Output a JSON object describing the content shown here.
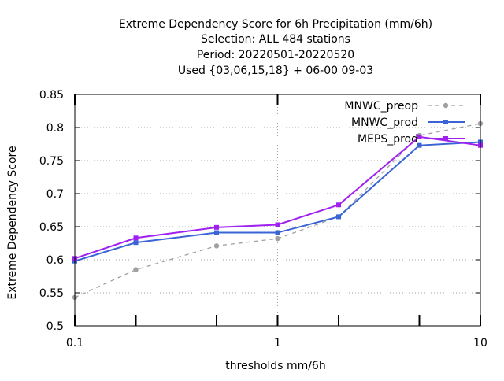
{
  "chart_data": {
    "type": "line",
    "title_lines": [
      "Extreme Dependency Score  for 6h Precipitation (mm/6h)",
      "Selection: ALL     484 stations",
      "Period: 20220501-20220520",
      "Used {03,06,15,18} + 06-00 09-03"
    ],
    "xlabel": "thresholds mm/6h",
    "ylabel": "Extreme Dependency Score",
    "xscale": "log",
    "xlim": [
      0.1,
      10
    ],
    "ylim": [
      0.5,
      0.85
    ],
    "x_ticks": [
      0.1,
      1,
      10
    ],
    "x_tick_labels": [
      "0.1",
      "1",
      "10"
    ],
    "y_ticks": [
      0.5,
      0.55,
      0.6,
      0.65,
      0.7,
      0.75,
      0.8,
      0.85
    ],
    "y_tick_labels": [
      "0.5",
      "0.55",
      "0.6",
      "0.65",
      "0.7",
      "0.75",
      "0.8",
      "0.85"
    ],
    "grid": "dotted lines at x=1 and at each y tick",
    "legend_position": "top-right",
    "x": [
      0.1,
      0.2,
      0.5,
      1,
      2,
      5,
      10
    ],
    "series": [
      {
        "name": "MNWC_preop",
        "color": "#a0a0a0",
        "dash": true,
        "values": [
          0.543,
          0.585,
          0.621,
          0.632,
          0.665,
          0.788,
          0.806
        ]
      },
      {
        "name": "MNWC_prod",
        "color": "#3a64d6",
        "dash": false,
        "values": [
          0.598,
          0.626,
          0.641,
          0.641,
          0.665,
          0.773,
          0.778
        ]
      },
      {
        "name": "MEPS_prod",
        "color": "#a020f0",
        "dash": false,
        "values": [
          0.602,
          0.633,
          0.649,
          0.653,
          0.683,
          0.786,
          0.773
        ]
      }
    ]
  }
}
